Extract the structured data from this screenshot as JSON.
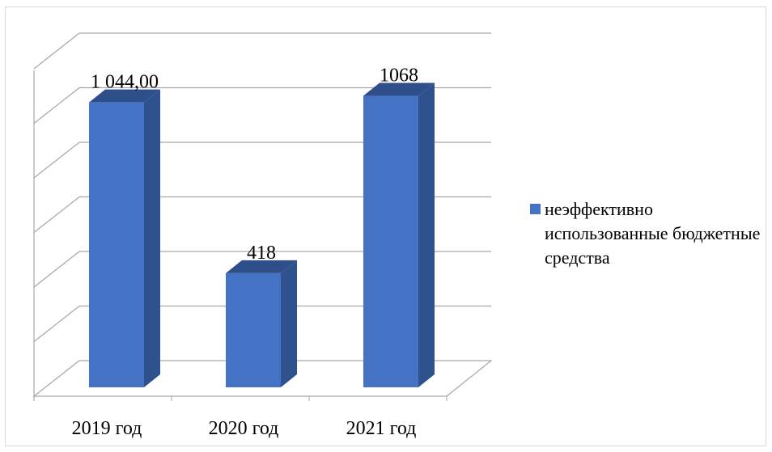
{
  "chart_data": {
    "type": "bar",
    "categories": [
      "2019 год",
      "2020 год",
      "2021 год"
    ],
    "series": [
      {
        "name": "неэффективно использованные бюджетные средства",
        "values": [
          1044.0,
          418,
          1068
        ],
        "data_labels": [
          "1 044,00",
          "418",
          "1068"
        ]
      }
    ],
    "ylim": [
      0,
      1200
    ],
    "grid": true,
    "legend_position": "right",
    "colors": {
      "bar_front": "#4472c4",
      "bar_side": "#2f528f",
      "bar_top": "#2e4f8a",
      "grid": "#a6a6a6"
    }
  }
}
